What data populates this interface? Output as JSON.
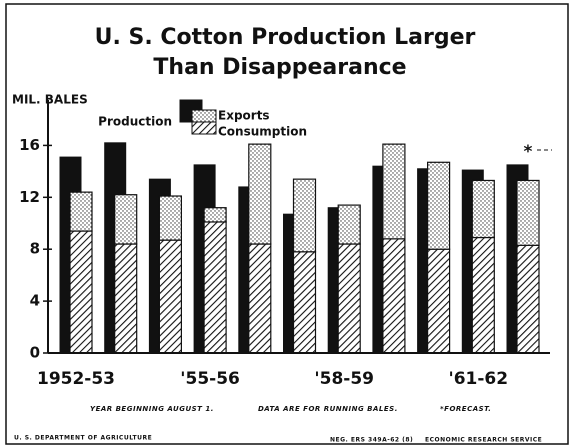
{
  "chart_data": {
    "type": "bar",
    "title": [
      "U. S. Cotton Production Larger",
      "Than Disappearance"
    ],
    "y_label": "MIL. BALES",
    "categories": [
      "1952-53",
      null,
      null,
      "'55-56",
      null,
      null,
      "'58-59",
      null,
      null,
      "'61-62",
      null
    ],
    "series": [
      {
        "name": "Production",
        "color": "#111111",
        "pattern": "solid",
        "values": [
          15.1,
          16.2,
          13.4,
          14.5,
          12.8,
          10.7,
          11.2,
          14.4,
          14.2,
          14.1,
          14.5
        ]
      },
      {
        "name": "Exports",
        "color": "#111111",
        "pattern": "dots",
        "stack": "disappearance",
        "values": [
          3.0,
          3.8,
          3.4,
          1.1,
          7.7,
          5.6,
          3.0,
          7.3,
          6.7,
          4.4,
          5.0
        ]
      },
      {
        "name": "Consumption",
        "color": "#111111",
        "pattern": "hatch",
        "stack": "disappearance",
        "values": [
          9.4,
          8.4,
          8.7,
          10.1,
          8.4,
          7.8,
          8.4,
          8.8,
          8.0,
          8.9,
          8.3
        ]
      }
    ],
    "annotations": [
      "*"
    ],
    "ylim": [
      0,
      19.5
    ],
    "yticks": [
      0,
      4,
      8,
      12,
      16
    ],
    "grid": false,
    "footnotes": [
      "YEAR BEGINNING AUGUST 1.",
      "DATA ARE FOR RUNNING BALES.",
      "*FORECAST."
    ],
    "credits": [
      "U. S. DEPARTMENT OF AGRICULTURE",
      "NEG. ERS 349A-62 (8)",
      "ECONOMIC RESEARCH SERVICE"
    ]
  }
}
